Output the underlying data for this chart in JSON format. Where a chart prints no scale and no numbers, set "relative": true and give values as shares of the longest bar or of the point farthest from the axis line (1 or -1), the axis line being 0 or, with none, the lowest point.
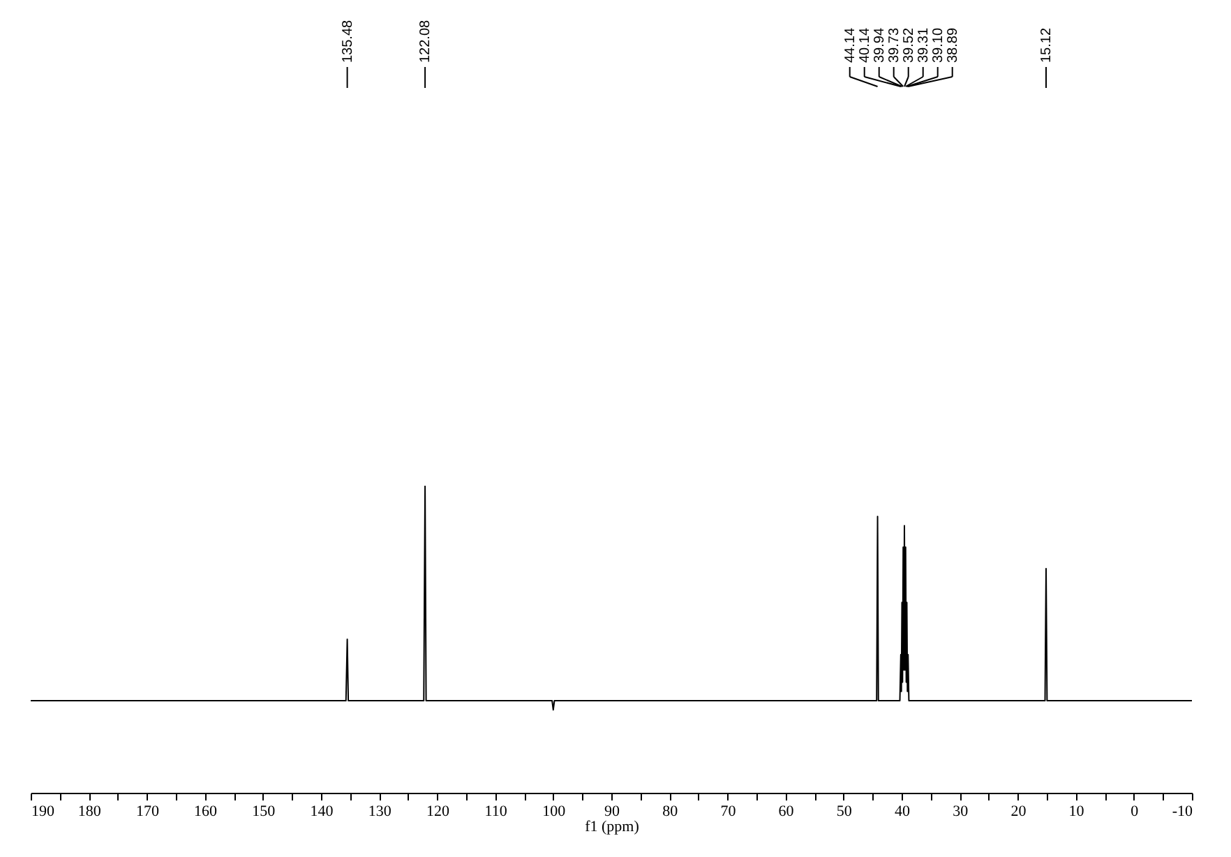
{
  "chart_data": {
    "type": "line",
    "relative": true,
    "xlabel": "f1 (ppm)",
    "xlim": [
      190,
      -10
    ],
    "xticks": [
      190,
      {
        "value": 185,
        "label": null
      },
      180,
      {
        "value": 175,
        "label": null
      },
      170,
      {
        "value": 165,
        "label": null
      },
      160,
      {
        "value": 155,
        "label": null
      },
      150,
      {
        "value": 145,
        "label": null
      },
      140,
      {
        "value": 135,
        "label": null
      },
      130,
      {
        "value": 125,
        "label": null
      },
      120,
      {
        "value": 115,
        "label": null
      },
      110,
      {
        "value": 105,
        "label": null
      },
      100,
      {
        "value": 95,
        "label": null
      },
      90,
      {
        "value": 85,
        "label": null
      },
      80,
      {
        "value": 75,
        "label": null
      },
      70,
      {
        "value": 65,
        "label": null
      },
      60,
      {
        "value": 55,
        "label": null
      },
      50,
      {
        "value": 45,
        "label": null
      },
      40,
      {
        "value": 35,
        "label": null
      },
      30,
      {
        "value": 25,
        "label": null
      },
      20,
      {
        "value": 15,
        "label": null
      },
      10,
      {
        "value": 5,
        "label": null
      },
      0,
      {
        "value": -5,
        "label": null
      },
      -10
    ],
    "grid": false,
    "marker": "none",
    "line_style": "solid",
    "series": [
      {
        "color": "#000000",
        "x": [
          190,
          135.7,
          135.48,
          135.3,
          122.3,
          122.08,
          121.9,
          100.2,
          100.0,
          99.8,
          44.3,
          44.14,
          44.0,
          40.3,
          40.14,
          40.04,
          39.94,
          39.84,
          39.73,
          39.62,
          39.52,
          39.42,
          39.31,
          39.2,
          39.1,
          39.0,
          38.89,
          38.75,
          15.3,
          15.12,
          14.95,
          -10
        ],
        "values": [
          0.3,
          0.3,
          0.5,
          0.3,
          0.3,
          1.0,
          0.3,
          0.3,
          0.27,
          0.3,
          0.3,
          0.9,
          0.3,
          0.3,
          0.45,
          0.33,
          0.62,
          0.36,
          0.8,
          0.4,
          0.87,
          0.4,
          0.8,
          0.36,
          0.62,
          0.33,
          0.45,
          0.3,
          0.3,
          0.73,
          0.3,
          0.3
        ]
      }
    ],
    "annotations": [
      {
        "text": "135.48",
        "x": 135.48
      },
      {
        "text": "122.08",
        "x": 122.08
      },
      {
        "text": "44.14",
        "x": 44.14
      },
      {
        "text": "40.14",
        "x": 40.14
      },
      {
        "text": "39.94",
        "x": 39.94
      },
      {
        "text": "39.73",
        "x": 39.73
      },
      {
        "text": "39.52",
        "x": 39.52
      },
      {
        "text": "39.31",
        "x": 39.31
      },
      {
        "text": "39.10",
        "x": 39.1
      },
      {
        "text": "38.89",
        "x": 38.89
      },
      {
        "text": "15.12",
        "x": 15.12
      }
    ]
  }
}
